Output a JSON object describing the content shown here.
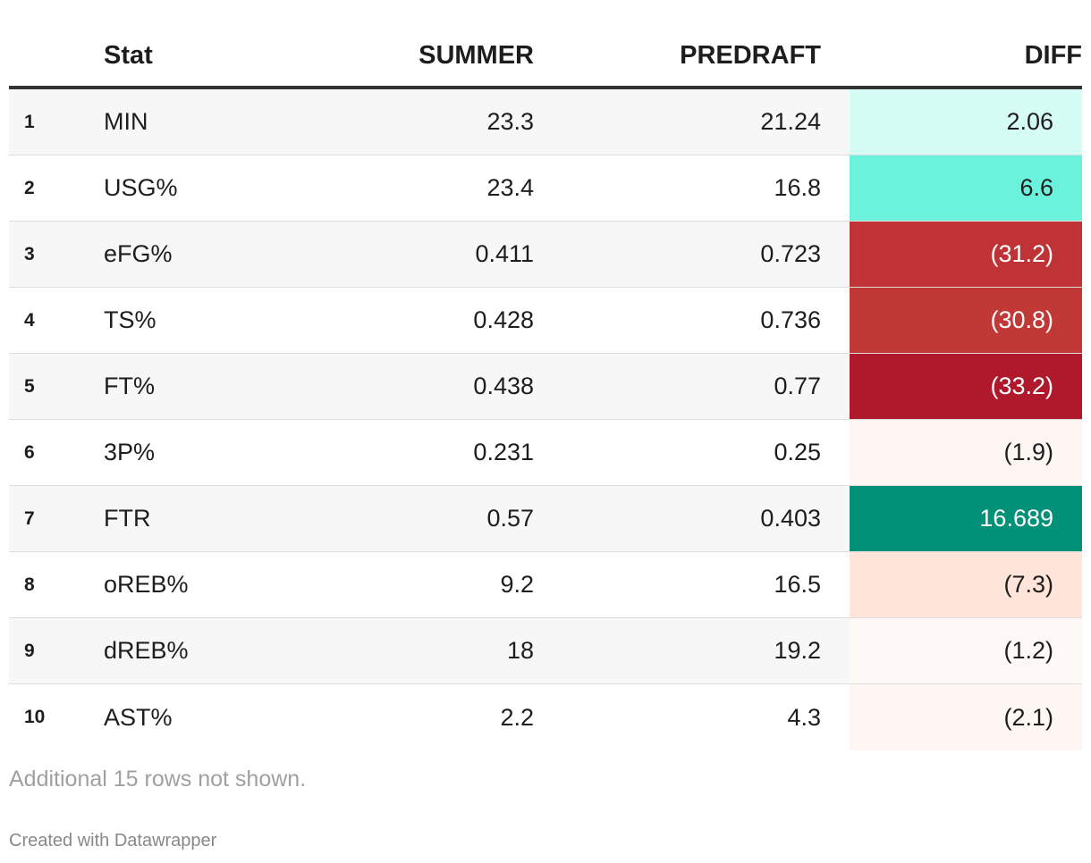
{
  "chart_data": {
    "type": "table",
    "columns": [
      "",
      "Stat",
      "SUMMER",
      "PREDRAFT",
      "DIFF"
    ],
    "rows": [
      {
        "rank": "1",
        "stat": "MIN",
        "summer": "23.3",
        "predraft": "21.24",
        "diff": "2.06",
        "diff_bg": "#d6fdf5",
        "diff_color": "#1d1d1d"
      },
      {
        "rank": "2",
        "stat": "USG%",
        "summer": "23.4",
        "predraft": "16.8",
        "diff": "6.6",
        "diff_bg": "#6af2dd",
        "diff_color": "#1d1d1d"
      },
      {
        "rank": "3",
        "stat": "eFG%",
        "summer": "0.411",
        "predraft": "0.723",
        "diff": "(31.2)",
        "diff_bg": "#bf3235",
        "diff_color": "#ffffff"
      },
      {
        "rank": "4",
        "stat": "TS%",
        "summer": "0.428",
        "predraft": "0.736",
        "diff": "(30.8)",
        "diff_bg": "#c13936",
        "diff_color": "#ffffff"
      },
      {
        "rank": "5",
        "stat": "FT%",
        "summer": "0.438",
        "predraft": "0.77",
        "diff": "(33.2)",
        "diff_bg": "#b0182c",
        "diff_color": "#ffffff"
      },
      {
        "rank": "6",
        "stat": "3P%",
        "summer": "0.231",
        "predraft": "0.25",
        "diff": "(1.9)",
        "diff_bg": "#fdf6f2",
        "diff_color": "#1d1d1d"
      },
      {
        "rank": "7",
        "stat": "FTR",
        "summer": "0.57",
        "predraft": "0.403",
        "diff": "16.689",
        "diff_bg": "#009178",
        "diff_color": "#ffffff"
      },
      {
        "rank": "8",
        "stat": "oREB%",
        "summer": "9.2",
        "predraft": "16.5",
        "diff": "(7.3)",
        "diff_bg": "#fee4d9",
        "diff_color": "#1d1d1d"
      },
      {
        "rank": "9",
        "stat": "dREB%",
        "summer": "18",
        "predraft": "19.2",
        "diff": "(1.2)",
        "diff_bg": "#fef9f6",
        "diff_color": "#1d1d1d"
      },
      {
        "rank": "10",
        "stat": "AST%",
        "summer": "2.2",
        "predraft": "4.3",
        "diff": "(2.1)",
        "diff_bg": "#fef6f3",
        "diff_color": "#1d1d1d"
      }
    ]
  },
  "footer": {
    "note": "Additional 15 rows not shown.",
    "credit": "Created with Datawrapper"
  }
}
